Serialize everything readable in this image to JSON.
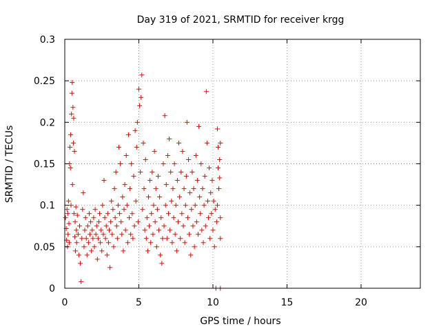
{
  "chart_data": {
    "type": "scatter",
    "title": "Day 319 of 2021, SRMTID for receiver krgg",
    "xlabel": "GPS time / hours",
    "ylabel": "SRMTID / TECUs",
    "xlim": [
      0,
      24
    ],
    "ylim": [
      0,
      0.3
    ],
    "xticks": [
      0,
      5,
      10,
      15,
      20
    ],
    "xtick_labels": [
      "0",
      "5",
      "10",
      "15",
      "20"
    ],
    "yticks": [
      0,
      0.05,
      0.1,
      0.15,
      0.2,
      0.25,
      0.3
    ],
    "ytick_labels": [
      "0",
      "0.05",
      "0.1",
      "0.15",
      "0.2",
      "0.25",
      "0.3"
    ],
    "grid": true,
    "marker": "+",
    "series": [
      {
        "name": "SRMTID",
        "color": "#ee0000",
        "points": [
          [
            0.05,
            0.085
          ],
          [
            0.1,
            0.072
          ],
          [
            0.12,
            0.058
          ],
          [
            0.15,
            0.095
          ],
          [
            0.18,
            0.05
          ],
          [
            0.2,
            0.09
          ],
          [
            0.22,
            0.065
          ],
          [
            0.25,
            0.105
          ],
          [
            0.28,
            0.078
          ],
          [
            0.3,
            0.055
          ],
          [
            0.32,
            0.15
          ],
          [
            0.35,
            0.17
          ],
          [
            0.38,
            0.145
          ],
          [
            0.4,
            0.185
          ],
          [
            0.42,
            0.1
          ],
          [
            0.45,
            0.21
          ],
          [
            0.48,
            0.235
          ],
          [
            0.5,
            0.248
          ],
          [
            0.52,
            0.125
          ],
          [
            0.55,
            0.218
          ],
          [
            0.58,
            0.175
          ],
          [
            0.6,
            0.205
          ],
          [
            0.62,
            0.09
          ],
          [
            0.65,
            0.165
          ],
          [
            0.68,
            0.062
          ],
          [
            0.7,
            0.08
          ],
          [
            0.72,
            0.045
          ],
          [
            0.75,
            0.098
          ],
          [
            0.78,
            0.07
          ],
          [
            0.8,
            0.055
          ],
          [
            0.85,
            0.088
          ],
          [
            0.9,
            0.065
          ],
          [
            0.95,
            0.04
          ],
          [
            1.0,
            0.075
          ],
          [
            1.05,
            0.03
          ],
          [
            1.1,
            0.008
          ],
          [
            1.15,
            0.06
          ],
          [
            1.2,
            0.095
          ],
          [
            1.25,
            0.115
          ],
          [
            1.3,
            0.05
          ],
          [
            1.35,
            0.07
          ],
          [
            1.4,
            0.085
          ],
          [
            1.45,
            0.06
          ],
          [
            1.5,
            0.04
          ],
          [
            1.55,
            0.075
          ],
          [
            1.6,
            0.055
          ],
          [
            1.65,
            0.09
          ],
          [
            1.7,
            0.065
          ],
          [
            1.75,
            0.08
          ],
          [
            1.8,
            0.045
          ],
          [
            1.85,
            0.07
          ],
          [
            1.9,
            0.06
          ],
          [
            1.95,
            0.085
          ],
          [
            2.0,
            0.05
          ],
          [
            2.05,
            0.095
          ],
          [
            2.1,
            0.065
          ],
          [
            2.15,
            0.075
          ],
          [
            2.2,
            0.035
          ],
          [
            2.25,
            0.06
          ],
          [
            2.3,
            0.08
          ],
          [
            2.35,
            0.09
          ],
          [
            2.4,
            0.055
          ],
          [
            2.45,
            0.07
          ],
          [
            2.5,
            0.045
          ],
          [
            2.55,
            0.1
          ],
          [
            2.6,
            0.065
          ],
          [
            2.65,
            0.13
          ],
          [
            2.7,
            0.085
          ],
          [
            2.75,
            0.06
          ],
          [
            2.8,
            0.075
          ],
          [
            2.85,
            0.04
          ],
          [
            2.9,
            0.09
          ],
          [
            2.95,
            0.055
          ],
          [
            3.0,
            0.07
          ],
          [
            3.05,
            0.025
          ],
          [
            3.1,
            0.08
          ],
          [
            3.15,
            0.105
          ],
          [
            3.2,
            0.065
          ],
          [
            3.25,
            0.095
          ],
          [
            3.3,
            0.05
          ],
          [
            3.35,
            0.12
          ],
          [
            3.4,
            0.085
          ],
          [
            3.45,
            0.14
          ],
          [
            3.5,
            0.075
          ],
          [
            3.55,
            0.06
          ],
          [
            3.6,
            0.1
          ],
          [
            3.65,
            0.17
          ],
          [
            3.7,
            0.09
          ],
          [
            3.75,
            0.15
          ],
          [
            3.8,
            0.08
          ],
          [
            3.85,
            0.065
          ],
          [
            3.9,
            0.11
          ],
          [
            3.95,
            0.045
          ],
          [
            4.0,
            0.095
          ],
          [
            4.05,
            0.125
          ],
          [
            4.1,
            0.07
          ],
          [
            4.15,
            0.16
          ],
          [
            4.2,
            0.1
          ],
          [
            4.25,
            0.055
          ],
          [
            4.3,
            0.185
          ],
          [
            4.35,
            0.085
          ],
          [
            4.4,
            0.12
          ],
          [
            4.45,
            0.065
          ],
          [
            4.5,
            0.15
          ],
          [
            4.55,
            0.09
          ],
          [
            4.6,
            0.06
          ],
          [
            4.65,
            0.135
          ],
          [
            4.7,
            0.075
          ],
          [
            4.75,
            0.19
          ],
          [
            4.8,
            0.105
          ],
          [
            4.85,
            0.17
          ],
          [
            4.9,
            0.2
          ],
          [
            4.95,
            0.08
          ],
          [
            5.0,
            0.24
          ],
          [
            5.05,
            0.22
          ],
          [
            5.1,
            0.14
          ],
          [
            5.15,
            0.23
          ],
          [
            5.2,
            0.257
          ],
          [
            5.25,
            0.095
          ],
          [
            5.3,
            0.175
          ],
          [
            5.35,
            0.12
          ],
          [
            5.4,
            0.07
          ],
          [
            5.45,
            0.155
          ],
          [
            5.5,
            0.06
          ],
          [
            5.55,
            0.085
          ],
          [
            5.6,
            0.045
          ],
          [
            5.65,
            0.11
          ],
          [
            5.7,
            0.075
          ],
          [
            5.75,
            0.13
          ],
          [
            5.8,
            0.055
          ],
          [
            5.85,
            0.09
          ],
          [
            5.9,
            0.14
          ],
          [
            5.95,
            0.065
          ],
          [
            6.0,
            0.1
          ],
          [
            6.05,
            0.165
          ],
          [
            6.1,
            0.08
          ],
          [
            6.15,
            0.12
          ],
          [
            6.2,
            0.05
          ],
          [
            6.25,
            0.095
          ],
          [
            6.3,
            0.135
          ],
          [
            6.35,
            0.07
          ],
          [
            6.4,
            0.11
          ],
          [
            6.45,
            0.04
          ],
          [
            6.5,
            0.085
          ],
          [
            6.55,
            0.03
          ],
          [
            6.6,
            0.06
          ],
          [
            6.65,
            0.15
          ],
          [
            6.7,
            0.075
          ],
          [
            6.75,
            0.208
          ],
          [
            6.8,
            0.1
          ],
          [
            6.85,
            0.125
          ],
          [
            6.9,
            0.06
          ],
          [
            6.95,
            0.16
          ],
          [
            7.0,
            0.09
          ],
          [
            7.05,
            0.18
          ],
          [
            7.1,
            0.07
          ],
          [
            7.15,
            0.14
          ],
          [
            7.2,
            0.105
          ],
          [
            7.25,
            0.055
          ],
          [
            7.3,
            0.12
          ],
          [
            7.35,
            0.085
          ],
          [
            7.4,
            0.15
          ],
          [
            7.45,
            0.065
          ],
          [
            7.5,
            0.1
          ],
          [
            7.55,
            0.045
          ],
          [
            7.6,
            0.13
          ],
          [
            7.65,
            0.08
          ],
          [
            7.7,
            0.175
          ],
          [
            7.75,
            0.11
          ],
          [
            7.8,
            0.06
          ],
          [
            7.85,
            0.14
          ],
          [
            7.9,
            0.09
          ],
          [
            7.95,
            0.165
          ],
          [
            8.0,
            0.075
          ],
          [
            8.05,
            0.12
          ],
          [
            8.1,
            0.055
          ],
          [
            8.15,
            0.1
          ],
          [
            8.2,
            0.135
          ],
          [
            8.25,
            0.2
          ],
          [
            8.3,
            0.085
          ],
          [
            8.35,
            0.155
          ],
          [
            8.4,
            0.065
          ],
          [
            8.45,
            0.115
          ],
          [
            8.5,
            0.04
          ],
          [
            8.55,
            0.095
          ],
          [
            8.6,
            0.14
          ],
          [
            8.65,
            0.075
          ],
          [
            8.7,
            0.12
          ],
          [
            8.75,
            0.05
          ],
          [
            8.8,
            0.1
          ],
          [
            8.85,
            0.16
          ],
          [
            8.9,
            0.08
          ],
          [
            8.95,
            0.13
          ],
          [
            9.0,
            0.065
          ],
          [
            9.05,
            0.195
          ],
          [
            9.1,
            0.11
          ],
          [
            9.15,
            0.09
          ],
          [
            9.2,
            0.15
          ],
          [
            9.25,
            0.07
          ],
          [
            9.3,
            0.12
          ],
          [
            9.35,
            0.055
          ],
          [
            9.4,
            0.1
          ],
          [
            9.45,
            0.135
          ],
          [
            9.5,
            0.075
          ],
          [
            9.55,
            0.237
          ],
          [
            9.6,
            0.175
          ],
          [
            9.65,
            0.105
          ],
          [
            9.7,
            0.085
          ],
          [
            9.75,
            0.145
          ],
          [
            9.8,
            0.06
          ],
          [
            9.85,
            0.115
          ],
          [
            9.9,
            0.09
          ],
          [
            9.95,
            0.13
          ],
          [
            10.0,
            0.07
          ],
          [
            10.05,
            0.105
          ],
          [
            10.1,
            0.05
          ],
          [
            10.15,
            0.095
          ],
          [
            10.2,
            0.0
          ],
          [
            10.25,
            0.08
          ],
          [
            10.3,
            0.192
          ],
          [
            10.35,
            0.17
          ],
          [
            10.4,
            0.12
          ],
          [
            10.45,
            0.155
          ],
          [
            10.5,
            0.0
          ],
          [
            10.5,
            0.175
          ],
          [
            10.5,
            0.085
          ],
          [
            10.5,
            0.06
          ],
          [
            10.45,
            0.133
          ],
          [
            10.35,
            0.145
          ],
          [
            10.3,
            0.1
          ]
        ]
      }
    ]
  }
}
